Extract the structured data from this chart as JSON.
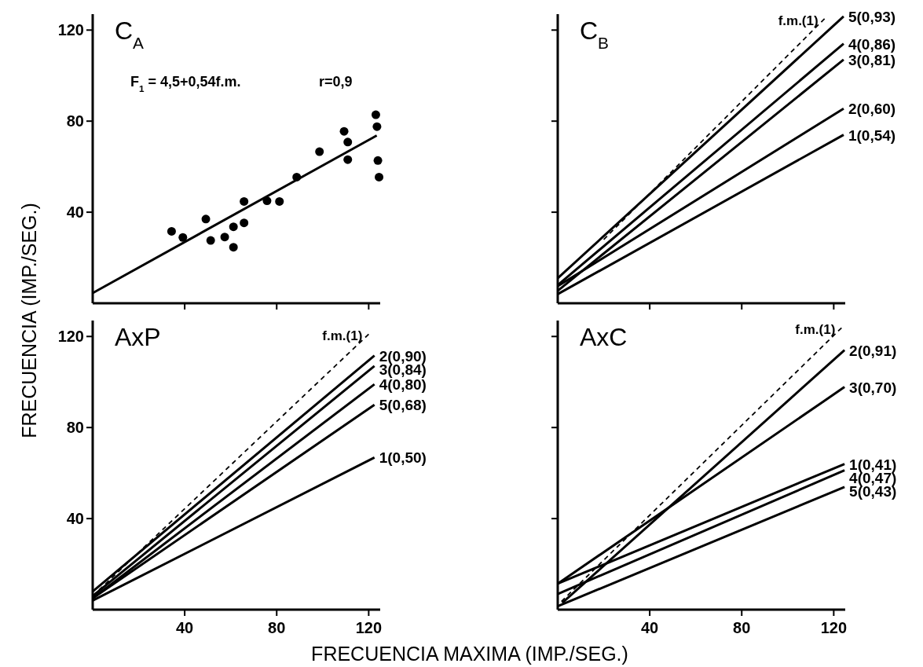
{
  "chart_data": [
    {
      "type": "scatter",
      "title": "C$_{A}$",
      "ylabel": "FRECUENCIA (IMP./SEG.)",
      "annotations": [
        "F$_{1}$ = 4,5+0,54f.m.",
        "r=0,9"
      ],
      "xlim": [
        0,
        125
      ],
      "ylim": [
        0,
        127
      ],
      "xticks": [
        40,
        80,
        120
      ],
      "yticks": [
        40,
        80,
        120
      ],
      "tick_labels": "y",
      "series": [
        {
          "marker": "circle",
          "color": "#000000",
          "x": [
            34.3,
            39.2,
            49.2,
            51.3,
            57.4,
            61.2,
            61.2,
            65.8,
            65.8,
            75.8,
            81.2,
            88.7,
            98.6,
            109.3,
            110.9,
            110.9,
            123.1,
            123.6,
            124.0,
            124.5
          ],
          "values": [
            31.6,
            28.9,
            37.0,
            27.6,
            29.1,
            33.6,
            24.6,
            44.7,
            35.3,
            45.0,
            44.7,
            55.4,
            66.6,
            75.5,
            70.8,
            63.1,
            82.8,
            77.6,
            62.7,
            55.4
          ]
        },
        {
          "type": "line",
          "color": "#000000",
          "x": [
            0,
            123.5
          ],
          "values": [
            4.5,
            73.7
          ]
        }
      ]
    },
    {
      "type": "line",
      "title": "C$_{B}$",
      "xlim": [
        0,
        125
      ],
      "ylim": [
        0,
        127
      ],
      "xticks": [
        40,
        80,
        120
      ],
      "yticks": [
        40,
        80,
        120
      ],
      "tick_labels": false,
      "series": [
        {
          "name": "f.m.(1)",
          "color": "#000000",
          "line_style": "dashed",
          "x": [
            20,
            116
          ],
          "values": [
            28,
            125
          ]
        },
        {
          "name": "5(0,93)",
          "color": "#000000",
          "x": [
            0,
            124.3
          ],
          "values": [
            11,
            126
          ]
        },
        {
          "name": "4(0,86)",
          "color": "#000000",
          "x": [
            0,
            124.3
          ],
          "values": [
            8,
            114
          ]
        },
        {
          "name": "3(0,81)",
          "color": "#000000",
          "x": [
            0,
            124.3
          ],
          "values": [
            5.5,
            107
          ]
        },
        {
          "name": "2(0,60)",
          "color": "#000000",
          "x": [
            0,
            124.3
          ],
          "values": [
            7.5,
            85.5
          ]
        },
        {
          "name": "1(0,54)",
          "color": "#000000",
          "x": [
            0,
            124.3
          ],
          "values": [
            4,
            74
          ]
        }
      ]
    },
    {
      "type": "line",
      "title": "AxP",
      "xlabel": "FRECUENCIA MAXIMA (IMP./SEG.)",
      "xlim": [
        0,
        125
      ],
      "ylim": [
        0,
        127
      ],
      "xticks": [
        40,
        80,
        120
      ],
      "yticks": [
        40,
        80,
        120
      ],
      "series": [
        {
          "name": "f.m.(1)",
          "color": "#000000",
          "line_style": "dashed",
          "x": [
            0,
            120
          ],
          "values": [
            6,
            121
          ]
        },
        {
          "name": "2(0,90)",
          "color": "#000000",
          "x": [
            0,
            122.5
          ],
          "values": [
            8,
            111.6
          ]
        },
        {
          "name": "3(0,84)",
          "color": "#000000",
          "x": [
            0,
            122.5
          ],
          "values": [
            6,
            107
          ]
        },
        {
          "name": "4(0,80)",
          "color": "#000000",
          "x": [
            0,
            122.5
          ],
          "values": [
            5,
            99
          ]
        },
        {
          "name": "5(0,68)",
          "color": "#000000",
          "x": [
            0,
            122.5
          ],
          "values": [
            5,
            90
          ]
        },
        {
          "name": "1(0,50)",
          "color": "#000000",
          "x": [
            0,
            122.5
          ],
          "values": [
            4,
            66.8
          ]
        }
      ]
    },
    {
      "type": "line",
      "title": "AxC",
      "xlim": [
        0,
        125
      ],
      "ylim": [
        0,
        127
      ],
      "xticks": [
        40,
        80,
        120
      ],
      "yticks": [
        40,
        80,
        120
      ],
      "tick_labels": "x",
      "series": [
        {
          "name": "f.m.(1)",
          "color": "#000000",
          "line_style": "dashed",
          "x": [
            1.6,
            123.4
          ],
          "values": [
            3.6,
            123.8
          ]
        },
        {
          "name": "2(0,91)",
          "color": "#000000",
          "x": [
            2,
            124.7
          ],
          "values": [
            3,
            114
          ]
        },
        {
          "name": "3(0,70)",
          "color": "#000000",
          "x": [
            0,
            124.7
          ],
          "values": [
            11.4,
            97.8
          ]
        },
        {
          "name": "1(0,41)",
          "color": "#000000",
          "x": [
            0,
            124.7
          ],
          "values": [
            11.4,
            64
          ]
        },
        {
          "name": "4(0,47)",
          "color": "#000000",
          "x": [
            0,
            124.7
          ],
          "values": [
            6.9,
            61.2
          ]
        },
        {
          "name": "5(0,43)",
          "color": "#000000",
          "x": [
            0,
            124.7
          ],
          "values": [
            1.5,
            53.9
          ]
        }
      ]
    }
  ]
}
